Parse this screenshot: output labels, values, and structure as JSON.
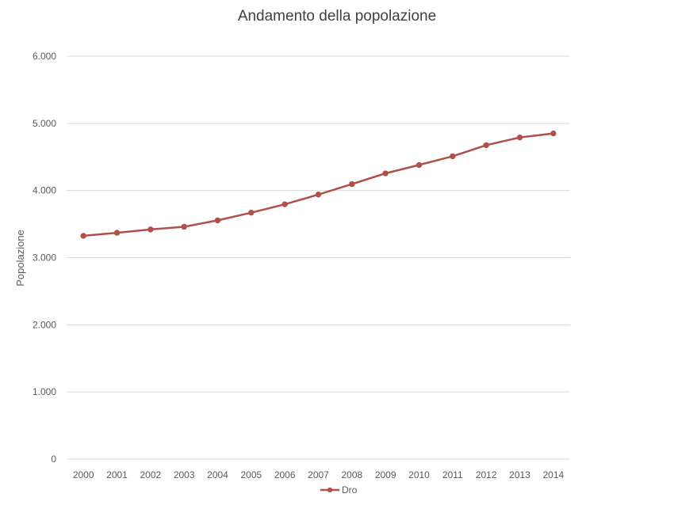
{
  "chart_data": {
    "type": "line",
    "title": "Andamento della popolazione",
    "xlabel": "",
    "ylabel": "Popolazione",
    "categories": [
      "2000",
      "2001",
      "2002",
      "2003",
      "2004",
      "2005",
      "2006",
      "2007",
      "2008",
      "2009",
      "2010",
      "2011",
      "2012",
      "2013",
      "2014"
    ],
    "series": [
      {
        "name": "Dro",
        "color": "#b0504d",
        "values": [
          3325,
          3370,
          3420,
          3460,
          3555,
          3670,
          3795,
          3940,
          4095,
          4255,
          4380,
          4510,
          4675,
          4790,
          4850
        ]
      }
    ],
    "ylim": [
      0,
      6000
    ],
    "yticks": [
      0,
      1000,
      2000,
      3000,
      4000,
      5000,
      6000
    ],
    "ytick_labels": [
      "0",
      "1.000",
      "2.000",
      "3.000",
      "4.000",
      "5.000",
      "6.000"
    ],
    "grid": true,
    "legend": "bottom-center"
  }
}
